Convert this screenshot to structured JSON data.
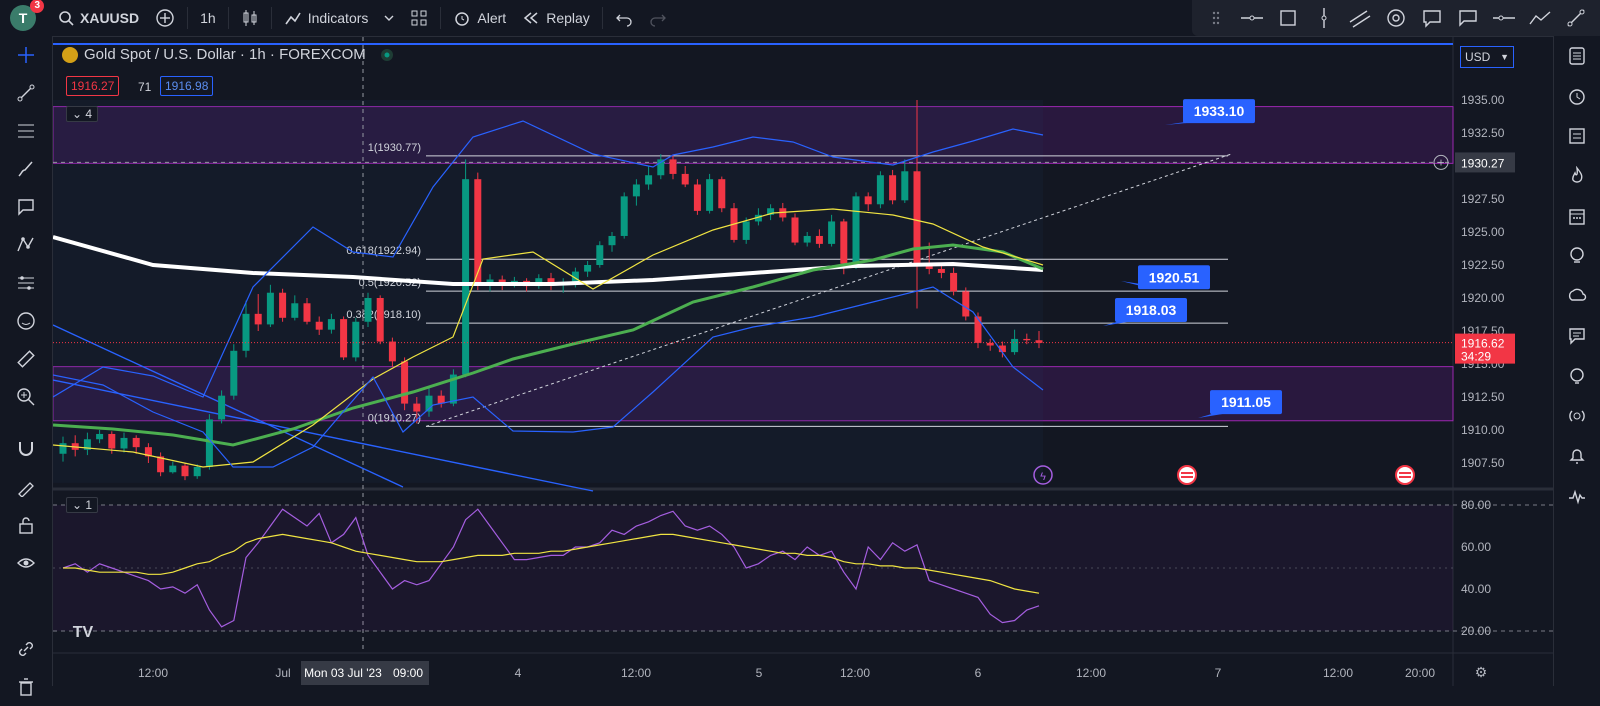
{
  "toolbar": {
    "avatar_letter": "T",
    "notification_count": "3",
    "symbol": "XAUUSD",
    "interval": "1h",
    "indicators_label": "Indicators",
    "alert_label": "Alert",
    "replay_label": "Replay"
  },
  "legend": {
    "title": "Gold Spot / U.S. Dollar · 1h · FOREXCOM",
    "bid": "1916.27",
    "spread": "71",
    "ask": "1916.98",
    "main_collapse": "4",
    "rsi_collapse": "1",
    "currency": "USD"
  },
  "price_axis": {
    "ticks": [
      "1935.00",
      "1932.50",
      "1930.00",
      "1927.50",
      "1925.00",
      "1922.50",
      "1920.00",
      "1917.50",
      "1915.00",
      "1912.50",
      "1910.00",
      "1907.50"
    ],
    "crosshair_price": "1930.27",
    "last_price": "1916.62",
    "countdown": "34:29"
  },
  "rsi_axis": {
    "ticks": [
      "80.00",
      "60.00",
      "40.00",
      "20.00"
    ]
  },
  "time_axis": {
    "ticks": [
      "12:00",
      "Jul",
      "4",
      "12:00",
      "5",
      "12:00",
      "6",
      "12:00",
      "7",
      "12:00",
      "20:00"
    ],
    "crosshair_label": "Mon 03 Jul '23",
    "crosshair_time": "09:00"
  },
  "fib": {
    "level_1": "1(1930.77)",
    "level_0618": "0.618(1922.94)",
    "level_05": "0.5(1920.52)",
    "level_0382": "0.382(1918.10)",
    "level_0": "0(1910.27)"
  },
  "callouts": {
    "c1": "1933.10",
    "c2": "1920.51",
    "c3": "1918.03",
    "c4": "1911.05"
  },
  "colors": {
    "background": "#131722",
    "up_candle": "#089981",
    "down_candle": "#f23645",
    "zone": "#7b1fa2",
    "callout": "#2962ff",
    "bollinger": "#2962ff",
    "ma_slow": "#ffffff",
    "ma_fast": "#4caf50",
    "ma_yellow": "#f0e442",
    "rsi": "#a55ee0"
  },
  "left_tools": [
    "crosshair-icon",
    "trendline-icon",
    "fib-icon",
    "brush-icon",
    "text-icon",
    "pattern-icon",
    "forecast-icon",
    "emoji-icon",
    "ruler-icon",
    "zoom-in-icon",
    "magnet-icon",
    "lock-draw-icon",
    "lock-icon",
    "eye-icon",
    "link-icon",
    "trash-icon"
  ],
  "right_tools": [
    "watchlist-icon",
    "alarm-clock-icon",
    "calendar-list-icon",
    "hotlist-icon",
    "calendar-icon",
    "ideas-icon",
    "streams-icon",
    "chat-icon",
    "help-icon",
    "broadcast-icon",
    "bell-icon",
    "pulse-icon"
  ]
}
